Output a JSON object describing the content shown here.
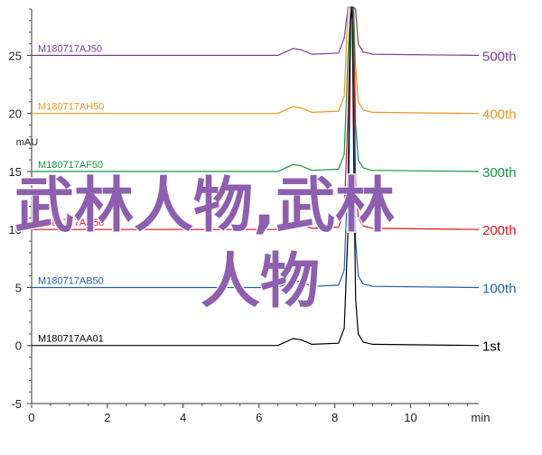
{
  "chart_data": {
    "type": "line",
    "y_unit": "mAU",
    "x_unit": "min",
    "xlim": [
      0,
      11.8
    ],
    "ylim": [
      -5,
      29
    ],
    "x_ticks": [
      0,
      2,
      4,
      6,
      8,
      10
    ],
    "y_ticks": [
      -5,
      0,
      5,
      10,
      15,
      20,
      25
    ],
    "grid": false,
    "series": [
      {
        "name": "M180717AA01",
        "label": "1st",
        "color": "#000000",
        "offset": 0,
        "x": [
          0,
          6.5,
          6.9,
          7.1,
          7.4,
          8.1,
          8.25,
          8.35,
          8.42,
          8.46,
          8.5,
          8.55,
          8.62,
          8.75,
          9.0,
          11.8
        ],
        "y": [
          0,
          0,
          0.6,
          0.5,
          0.1,
          0.2,
          1.5,
          10,
          28,
          31,
          16,
          4,
          1,
          0.3,
          0.1,
          0
        ]
      },
      {
        "name": "M180717AB50",
        "label": "100th",
        "color": "#1f5fb0",
        "offset": 5,
        "x": [
          0,
          6.5,
          6.9,
          7.1,
          7.4,
          8.1,
          8.25,
          8.35,
          8.42,
          8.46,
          8.5,
          8.55,
          8.62,
          8.75,
          9.0,
          11.8
        ],
        "y": [
          0,
          0,
          0.6,
          0.5,
          0.1,
          0.2,
          1.5,
          10,
          28,
          31,
          16,
          4,
          1,
          0.3,
          0.1,
          0
        ]
      },
      {
        "name": "M180717AD50",
        "label": "200th",
        "color": "#e4121b",
        "offset": 10,
        "x": [
          0,
          6.5,
          6.9,
          7.1,
          7.4,
          8.1,
          8.25,
          8.35,
          8.42,
          8.46,
          8.5,
          8.55,
          8.62,
          8.75,
          9.0,
          11.8
        ],
        "y": [
          0,
          0,
          0.6,
          0.5,
          0.1,
          0.2,
          1.5,
          10,
          28,
          31,
          16,
          4,
          1,
          0.3,
          0.1,
          0
        ]
      },
      {
        "name": "M180717AF50",
        "label": "300th",
        "color": "#13973d",
        "offset": 15,
        "x": [
          0,
          6.5,
          6.9,
          7.1,
          7.4,
          8.1,
          8.25,
          8.35,
          8.42,
          8.46,
          8.5,
          8.55,
          8.62,
          8.75,
          9.0,
          11.8
        ],
        "y": [
          0,
          0,
          0.6,
          0.5,
          0.1,
          0.2,
          1.5,
          10,
          28,
          31,
          16,
          4,
          1,
          0.3,
          0.1,
          0
        ]
      },
      {
        "name": "M180717AH50",
        "label": "400th",
        "color": "#f0941e",
        "offset": 20,
        "x": [
          0,
          6.5,
          6.9,
          7.1,
          7.4,
          8.1,
          8.25,
          8.35,
          8.42,
          8.46,
          8.5,
          8.55,
          8.62,
          8.75,
          9.0,
          11.8
        ],
        "y": [
          0,
          0,
          0.6,
          0.5,
          0.1,
          0.2,
          1.5,
          10,
          28,
          31,
          16,
          4,
          1,
          0.3,
          0.1,
          0
        ]
      },
      {
        "name": "M180717AJ50",
        "label": "500th",
        "color": "#7a3d98",
        "offset": 25,
        "x": [
          0,
          6.5,
          6.9,
          7.1,
          7.4,
          8.1,
          8.25,
          8.35,
          8.42,
          8.46,
          8.5,
          8.55,
          8.62,
          8.75,
          9.0,
          11.8
        ],
        "y": [
          0,
          0,
          0.6,
          0.5,
          0.1,
          0.2,
          1.5,
          10,
          28,
          31,
          16,
          4,
          1,
          0.3,
          0.1,
          0
        ]
      }
    ]
  },
  "watermark": {
    "line1": "武林人物,武林",
    "line2": "人物",
    "color": "#8d5fae"
  }
}
